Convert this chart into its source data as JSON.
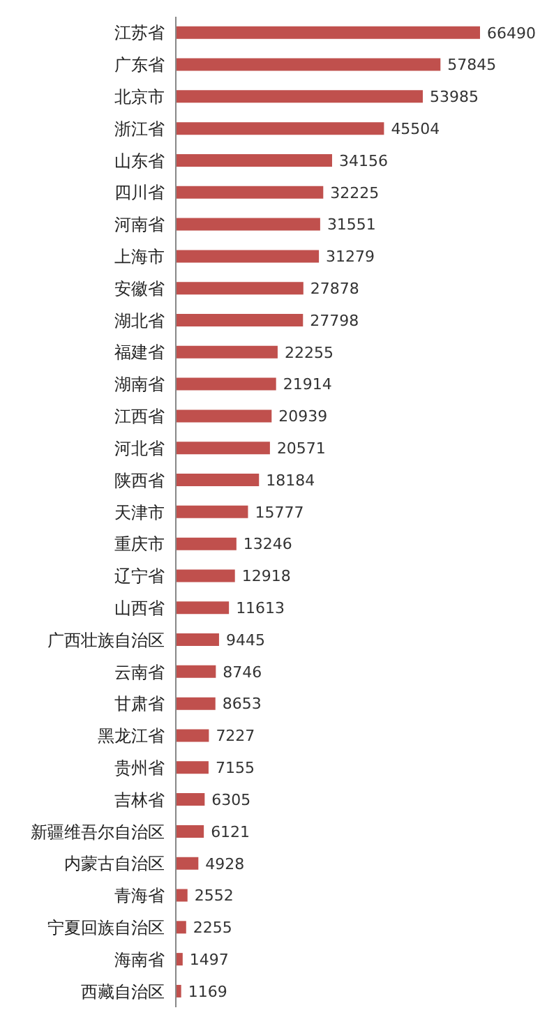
{
  "chart_data": {
    "type": "bar",
    "orientation": "horizontal",
    "data_labels": true,
    "categories": [
      "江苏省",
      "广东省",
      "北京市",
      "浙江省",
      "山东省",
      "四川省",
      "河南省",
      "上海市",
      "安徽省",
      "湖北省",
      "福建省",
      "湖南省",
      "江西省",
      "河北省",
      "陕西省",
      "天津市",
      "重庆市",
      "辽宁省",
      "山西省",
      "广西壮族自治区",
      "云南省",
      "甘肃省",
      "黑龙江省",
      "贵州省",
      "吉林省",
      "新疆维吾尔自治区",
      "内蒙古自治区",
      "青海省",
      "宁夏回族自治区",
      "海南省",
      "西藏自治区"
    ],
    "values": [
      66490,
      57845,
      53985,
      45504,
      34156,
      32225,
      31551,
      31279,
      27878,
      27798,
      22255,
      21914,
      20939,
      20571,
      18184,
      15777,
      13246,
      12918,
      11613,
      9445,
      8746,
      8653,
      7227,
      7155,
      6305,
      6121,
      4928,
      2552,
      2255,
      1497,
      1169
    ],
    "color": "#c0504d"
  }
}
